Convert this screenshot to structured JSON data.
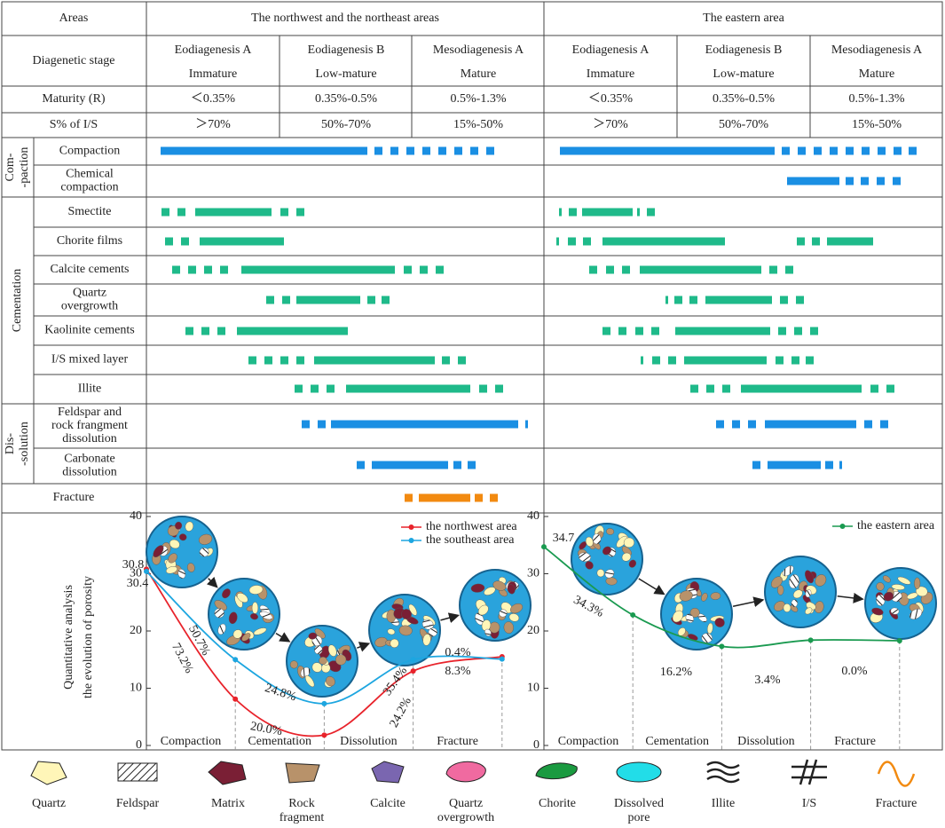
{
  "table": {
    "areas_label": "Areas",
    "areas": [
      "The northwest and the northeast areas",
      "The eastern area"
    ],
    "stage_label": "Diagenetic stage",
    "stages": [
      "Eodiagenesis A",
      "Eodiagenesis B",
      "Mesodiagenesis A"
    ],
    "maturity_stages": [
      "Immature",
      "Low-mature",
      "Mature"
    ],
    "maturity_label": "Maturity (R)",
    "maturity": [
      "＜0.35%",
      "0.35%-0.5%",
      "0.5%-1.3%"
    ],
    "is_label": "S% of I/S",
    "is": [
      "＞70%",
      "50%-70%",
      "15%-50%"
    ],
    "groups": [
      {
        "label": [
          "Com-",
          "-paction"
        ],
        "rows": [
          [
            "Compaction"
          ],
          [
            "Chemical",
            "compaction"
          ]
        ]
      },
      {
        "label": [
          "Cementation"
        ],
        "rows": [
          [
            "Smectite"
          ],
          [
            "Chorite films"
          ],
          [
            "Calcite cements"
          ],
          [
            "Quartz",
            "overgrowth"
          ],
          [
            "Kaolinite cements"
          ],
          [
            "I/S mixed layer"
          ],
          [
            "Illite"
          ]
        ]
      },
      {
        "label": [
          "Dis-",
          "-solution"
        ],
        "rows": [
          [
            "Feldspar and",
            "rock frangment",
            "dissolution"
          ],
          [
            "Carbonate",
            "dissolution"
          ]
        ]
      }
    ],
    "fracture_label": "Fracture"
  },
  "chart_data": [
    {
      "type": "line",
      "ylabel": [
        "Quantitative analysis",
        "the evolution of porosity"
      ],
      "stages": [
        "Compaction",
        "Cementation",
        "Dissolution",
        "Fracture"
      ],
      "ylim": [
        0,
        40
      ],
      "yticks": [
        0,
        10,
        20,
        30,
        40
      ],
      "series": [
        {
          "name": "the northwest area",
          "color": "#e8232b",
          "values": [
            30.8,
            8.1,
            1.8,
            13,
            15.5
          ],
          "annotations": [
            "73.2%",
            "20.0%",
            "24.2%",
            "8.3%"
          ]
        },
        {
          "name": "the southeast area",
          "color": "#1da6e0",
          "values": [
            30.4,
            15,
            7.3,
            15,
            15.1
          ],
          "annotations": [
            "50.7%",
            "24.8%",
            "35.4%",
            "0.4%"
          ]
        }
      ]
    },
    {
      "type": "line",
      "stages": [
        "Compaction",
        "Cementation",
        "Dissolution",
        "Fracture"
      ],
      "ylim": [
        0,
        40
      ],
      "yticks": [
        0,
        10,
        20,
        30,
        40
      ],
      "series": [
        {
          "name": "the eastern area",
          "color": "#1a9a50",
          "values": [
            34.7,
            22.8,
            17.3,
            18.4,
            18.3
          ],
          "annotations": [
            "34.3%",
            "16.2%",
            "3.4%",
            "0.0%"
          ]
        }
      ]
    }
  ],
  "key": [
    {
      "label": [
        "Quartz"
      ]
    },
    {
      "label": [
        "Feldspar"
      ]
    },
    {
      "label": [
        "Matrix"
      ]
    },
    {
      "label": [
        "Rock",
        "fragment"
      ]
    },
    {
      "label": [
        "Calcite"
      ]
    },
    {
      "label": [
        "Quartz",
        "overgrowth"
      ]
    },
    {
      "label": [
        "Chorite"
      ]
    },
    {
      "label": [
        "Dissolved",
        "pore"
      ]
    },
    {
      "label": [
        "Illite"
      ]
    },
    {
      "label": [
        "I/S"
      ]
    },
    {
      "label": [
        "Fracture"
      ]
    }
  ]
}
